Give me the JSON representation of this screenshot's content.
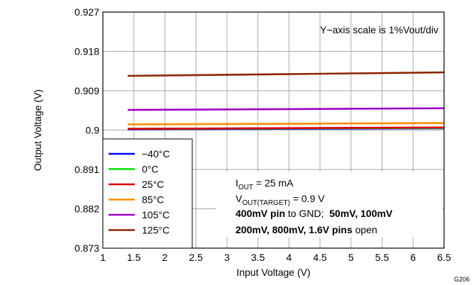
{
  "chart_data": {
    "type": "line",
    "xlabel": "Input Voltage (V)",
    "ylabel": "Output Voltage (V)",
    "xlim": [
      1,
      6.5
    ],
    "ylim": [
      0.873,
      0.927
    ],
    "x_ticks": [
      "1",
      "1.5",
      "2",
      "2.5",
      "3",
      "3.5",
      "4",
      "4.5",
      "5",
      "5.5",
      "6",
      "6.5"
    ],
    "y_ticks": [
      "0.927",
      "0.918",
      "0.909",
      "0.9",
      "0.891",
      "0.882",
      "0.873"
    ],
    "grid": true,
    "legend_position": "bottom-left",
    "figure_id": "G206",
    "annotations": {
      "scale_note": "Y−axis scale is 1%Vout/div",
      "iout": {
        "main": "I",
        "sub": "OUT",
        "rest": " = 25 mA"
      },
      "vout": {
        "main": "V",
        "sub": "OUT(TARGET)",
        "rest": " = 0.9 V"
      },
      "pins_line1": {
        "bold1": "400mV pin",
        "normal": " to GND;  ",
        "bold2": "50mV, 100mV"
      },
      "pins_line2": {
        "bold": "200mV, 800mV, 1.6V pins",
        "normal": " open"
      }
    },
    "series": [
      {
        "name": "−40°C",
        "color": "#0000ff",
        "x": [
          1.4,
          6.5
        ],
        "y": [
          0.9002,
          0.9004
        ]
      },
      {
        "name": "0°C",
        "color": "#00dd00",
        "x": [
          1.4,
          6.5
        ],
        "y": [
          0.9003,
          0.9005
        ]
      },
      {
        "name": "25°C",
        "color": "#e00000",
        "x": [
          1.4,
          6.5
        ],
        "y": [
          0.9003,
          0.9006
        ]
      },
      {
        "name": "85°C",
        "color": "#ff8c00",
        "x": [
          1.4,
          6.5
        ],
        "y": [
          0.9013,
          0.9016
        ]
      },
      {
        "name": "105°C",
        "color": "#a000c8",
        "x": [
          1.4,
          6.5
        ],
        "y": [
          0.9046,
          0.905
        ]
      },
      {
        "name": "125°C",
        "color": "#8b2500",
        "x": [
          1.4,
          6.5
        ],
        "y": [
          0.9124,
          0.9132
        ]
      }
    ]
  }
}
